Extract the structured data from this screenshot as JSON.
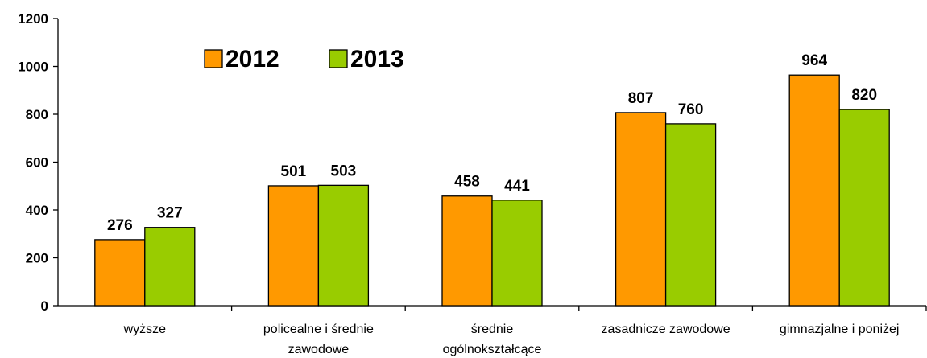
{
  "chart_data": {
    "type": "bar",
    "title": "",
    "xlabel": "",
    "ylabel": "",
    "ylim": [
      0,
      1200
    ],
    "yticks": [
      0,
      200,
      400,
      600,
      800,
      1000,
      1200
    ],
    "grid": false,
    "legend_position": "top-left",
    "categories": [
      [
        "wyższe"
      ],
      [
        "policealne i średnie",
        "zawodowe"
      ],
      [
        "średnie",
        "ogólnokształcące"
      ],
      [
        "zasadnicze zawodowe"
      ],
      [
        "gimnazjalne i poniżej"
      ]
    ],
    "series": [
      {
        "name": "2012",
        "color": "#ff9900",
        "values": [
          276,
          501,
          458,
          807,
          964
        ]
      },
      {
        "name": "2013",
        "color": "#99cc00",
        "values": [
          327,
          503,
          441,
          760,
          820
        ]
      }
    ]
  }
}
